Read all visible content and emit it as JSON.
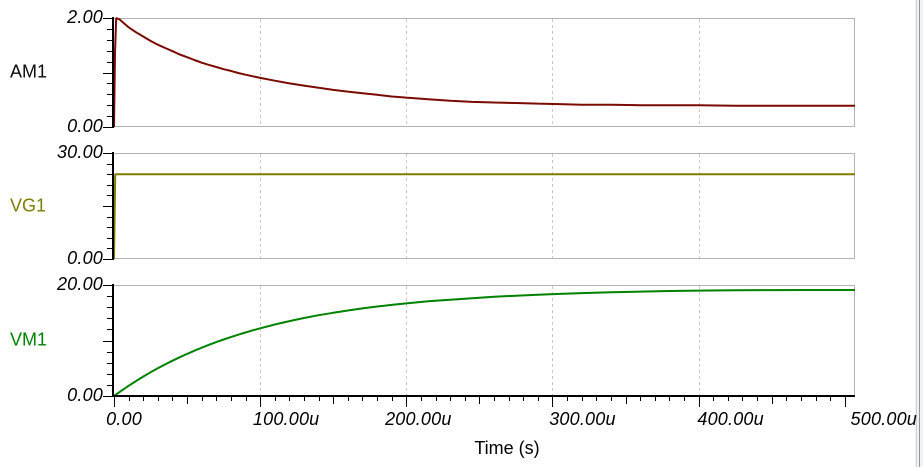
{
  "xaxis": {
    "title": "Time (s)",
    "tick_labels": [
      "0.00",
      "100.00u",
      "200.00u",
      "300.00u",
      "400.00u",
      "500.00u"
    ],
    "ticks_us": [
      0,
      100,
      200,
      300,
      400,
      500
    ],
    "gridline_ticks_us": [
      100,
      200,
      300,
      400
    ],
    "minor_step_us": 10,
    "mid_step_us": 50,
    "xlim_us": [
      0,
      507
    ]
  },
  "colors": {
    "axis": "#000000",
    "plot_border": "#b2b2b2",
    "gridline": "#c8c8c8",
    "background": "#ffffff",
    "window_edge_fill": "#f0f2f4",
    "window_edge_light": "#cdd1d6",
    "window_edge_dark": "#8e959d"
  },
  "chart_data": [
    {
      "type": "line",
      "name": "AM1",
      "color": "#7B0A02",
      "label_color": "#0b0b10",
      "ylim": [
        0,
        2
      ],
      "y_tick_labels": [
        "0.00",
        "2.00"
      ],
      "x_us": [
        0,
        0.7,
        1.5,
        4,
        7,
        10,
        15,
        20,
        25,
        30,
        35,
        40,
        45,
        50,
        55,
        60,
        65,
        70,
        75,
        80,
        85,
        90,
        95,
        100,
        110,
        120,
        130,
        140,
        150,
        160,
        170,
        180,
        190,
        200,
        215,
        230,
        245,
        260,
        275,
        290,
        305,
        320,
        340,
        360,
        380,
        400,
        425,
        450,
        475,
        500,
        507
      ],
      "y": [
        0,
        1.36,
        2.0,
        1.97,
        1.9,
        1.83,
        1.74,
        1.66,
        1.58,
        1.51,
        1.45,
        1.39,
        1.33,
        1.28,
        1.23,
        1.18,
        1.14,
        1.1,
        1.06,
        1.03,
        0.99,
        0.96,
        0.93,
        0.9,
        0.85,
        0.8,
        0.76,
        0.72,
        0.68,
        0.65,
        0.62,
        0.59,
        0.56,
        0.54,
        0.51,
        0.48,
        0.46,
        0.45,
        0.44,
        0.43,
        0.42,
        0.41,
        0.41,
        0.4,
        0.4,
        0.4,
        0.39,
        0.39,
        0.39,
        0.39,
        0.39
      ]
    },
    {
      "type": "line",
      "name": "VG1",
      "color": "#7E7D00",
      "label_color": "#7E7D00",
      "ylim": [
        0,
        30
      ],
      "y_tick_labels": [
        "0.00",
        "30.00"
      ],
      "x_us": [
        0,
        0.8,
        507
      ],
      "y": [
        0,
        24,
        24
      ]
    },
    {
      "type": "line",
      "name": "VM1",
      "color": "#008200",
      "label_color": "#008200",
      "ylim": [
        0,
        20
      ],
      "y_tick_labels": [
        "0.00",
        "20.00"
      ],
      "x_us": [
        0,
        5,
        10,
        15,
        20,
        25,
        30,
        35,
        40,
        45,
        50,
        55,
        60,
        65,
        70,
        75,
        80,
        85,
        90,
        95,
        100,
        110,
        120,
        130,
        140,
        150,
        160,
        170,
        180,
        190,
        200,
        215,
        230,
        245,
        260,
        275,
        290,
        305,
        320,
        340,
        360,
        380,
        400,
        425,
        450,
        475,
        500,
        507
      ],
      "y": [
        0,
        0.94,
        1.84,
        2.69,
        3.5,
        4.27,
        5.0,
        5.7,
        6.36,
        6.99,
        7.59,
        8.16,
        8.7,
        9.22,
        9.71,
        10.18,
        10.62,
        11.05,
        11.45,
        11.83,
        12.2,
        12.88,
        13.49,
        14.05,
        14.55,
        15.0,
        15.41,
        15.78,
        16.12,
        16.42,
        16.69,
        17.06,
        17.36,
        17.63,
        17.87,
        18.07,
        18.25,
        18.4,
        18.54,
        18.69,
        18.81,
        18.92,
        19.0,
        19.05,
        19.08,
        19.1,
        19.1,
        19.1
      ]
    }
  ]
}
